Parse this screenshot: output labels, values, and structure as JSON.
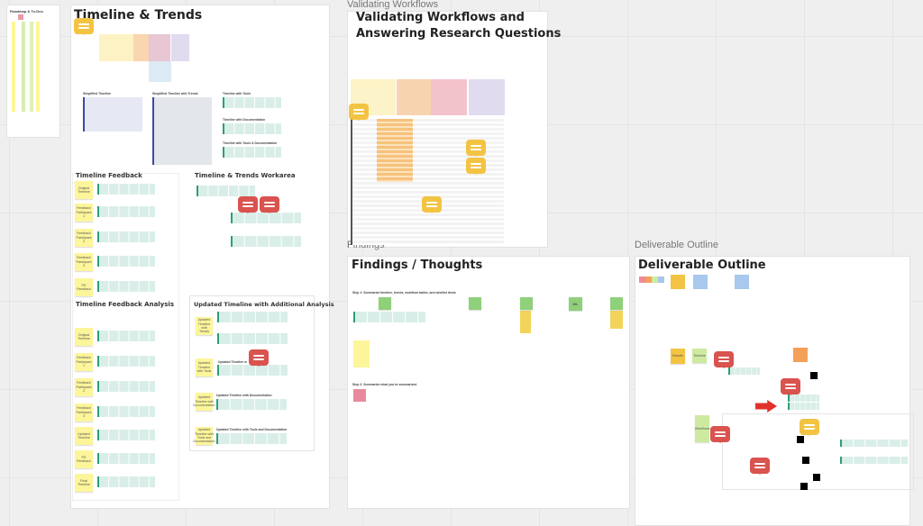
{
  "board": {
    "roadmap": {
      "title": "Roadmap & To-Dos"
    },
    "timeline": {
      "title": "Timeline & Trends",
      "subs": [
        "Simplified Timeline",
        "Simplified Timeline with Trends",
        "Timeline with Tools",
        "Timeline with Documentation",
        "Timeline with Tools & Documentation"
      ],
      "feedback": {
        "title": "Timeline Feedback",
        "stickies": [
          "Original Timeline",
          "Feedback Participant 1",
          "Feedback Participant 2",
          "Feedback Participant 3",
          "PD Feedback"
        ]
      },
      "workarea": {
        "title": "Timeline & Trends Workarea"
      },
      "analysis": {
        "title": "Timeline Feedback Analysis",
        "stickies": [
          "Original Timeline",
          "Feedback Participant 1",
          "Feedback Participant 2",
          "Feedback Participant 3",
          "Updated Timeline",
          "PD Feedback",
          "Final Timeline"
        ]
      },
      "updated": {
        "title": "Updated Timeline with Additional Analysis",
        "stickies": [
          "Updated Timeline with Trends",
          "Updated Timeline with Tools",
          "Updated Timeline with Documentation",
          "Updated Timeline with Tools and Documentation"
        ],
        "heads": [
          "Updated Timeline w",
          "Updated Timeline with Documentation",
          "Updated Timeline with Tools and Documentation"
        ]
      }
    },
    "validating": {
      "label": "Validating Workflows",
      "title_line1": "Validating Workflows and",
      "title_line2": "Answering Research Questions"
    },
    "findings": {
      "label": "Findings",
      "title": "Findings / Thoughts",
      "step1": "Step 1: Summarize timeline, trends, workflow tables, and wishlist items",
      "step2": "Step 2: Summarize what you've summarized",
      "wl": "WL"
    },
    "deliverable": {
      "label": "Deliverable Outline",
      "title": "Deliverable Outline",
      "stickies": [
        "Results",
        "Timeline",
        "Workflows"
      ]
    }
  },
  "colors": {
    "comment_yellow": "#f3c443",
    "comment_red": "#d9534f",
    "sticky": "#fdf59a",
    "table_teal": "#2d9e78",
    "arrow": "#e0322b"
  }
}
